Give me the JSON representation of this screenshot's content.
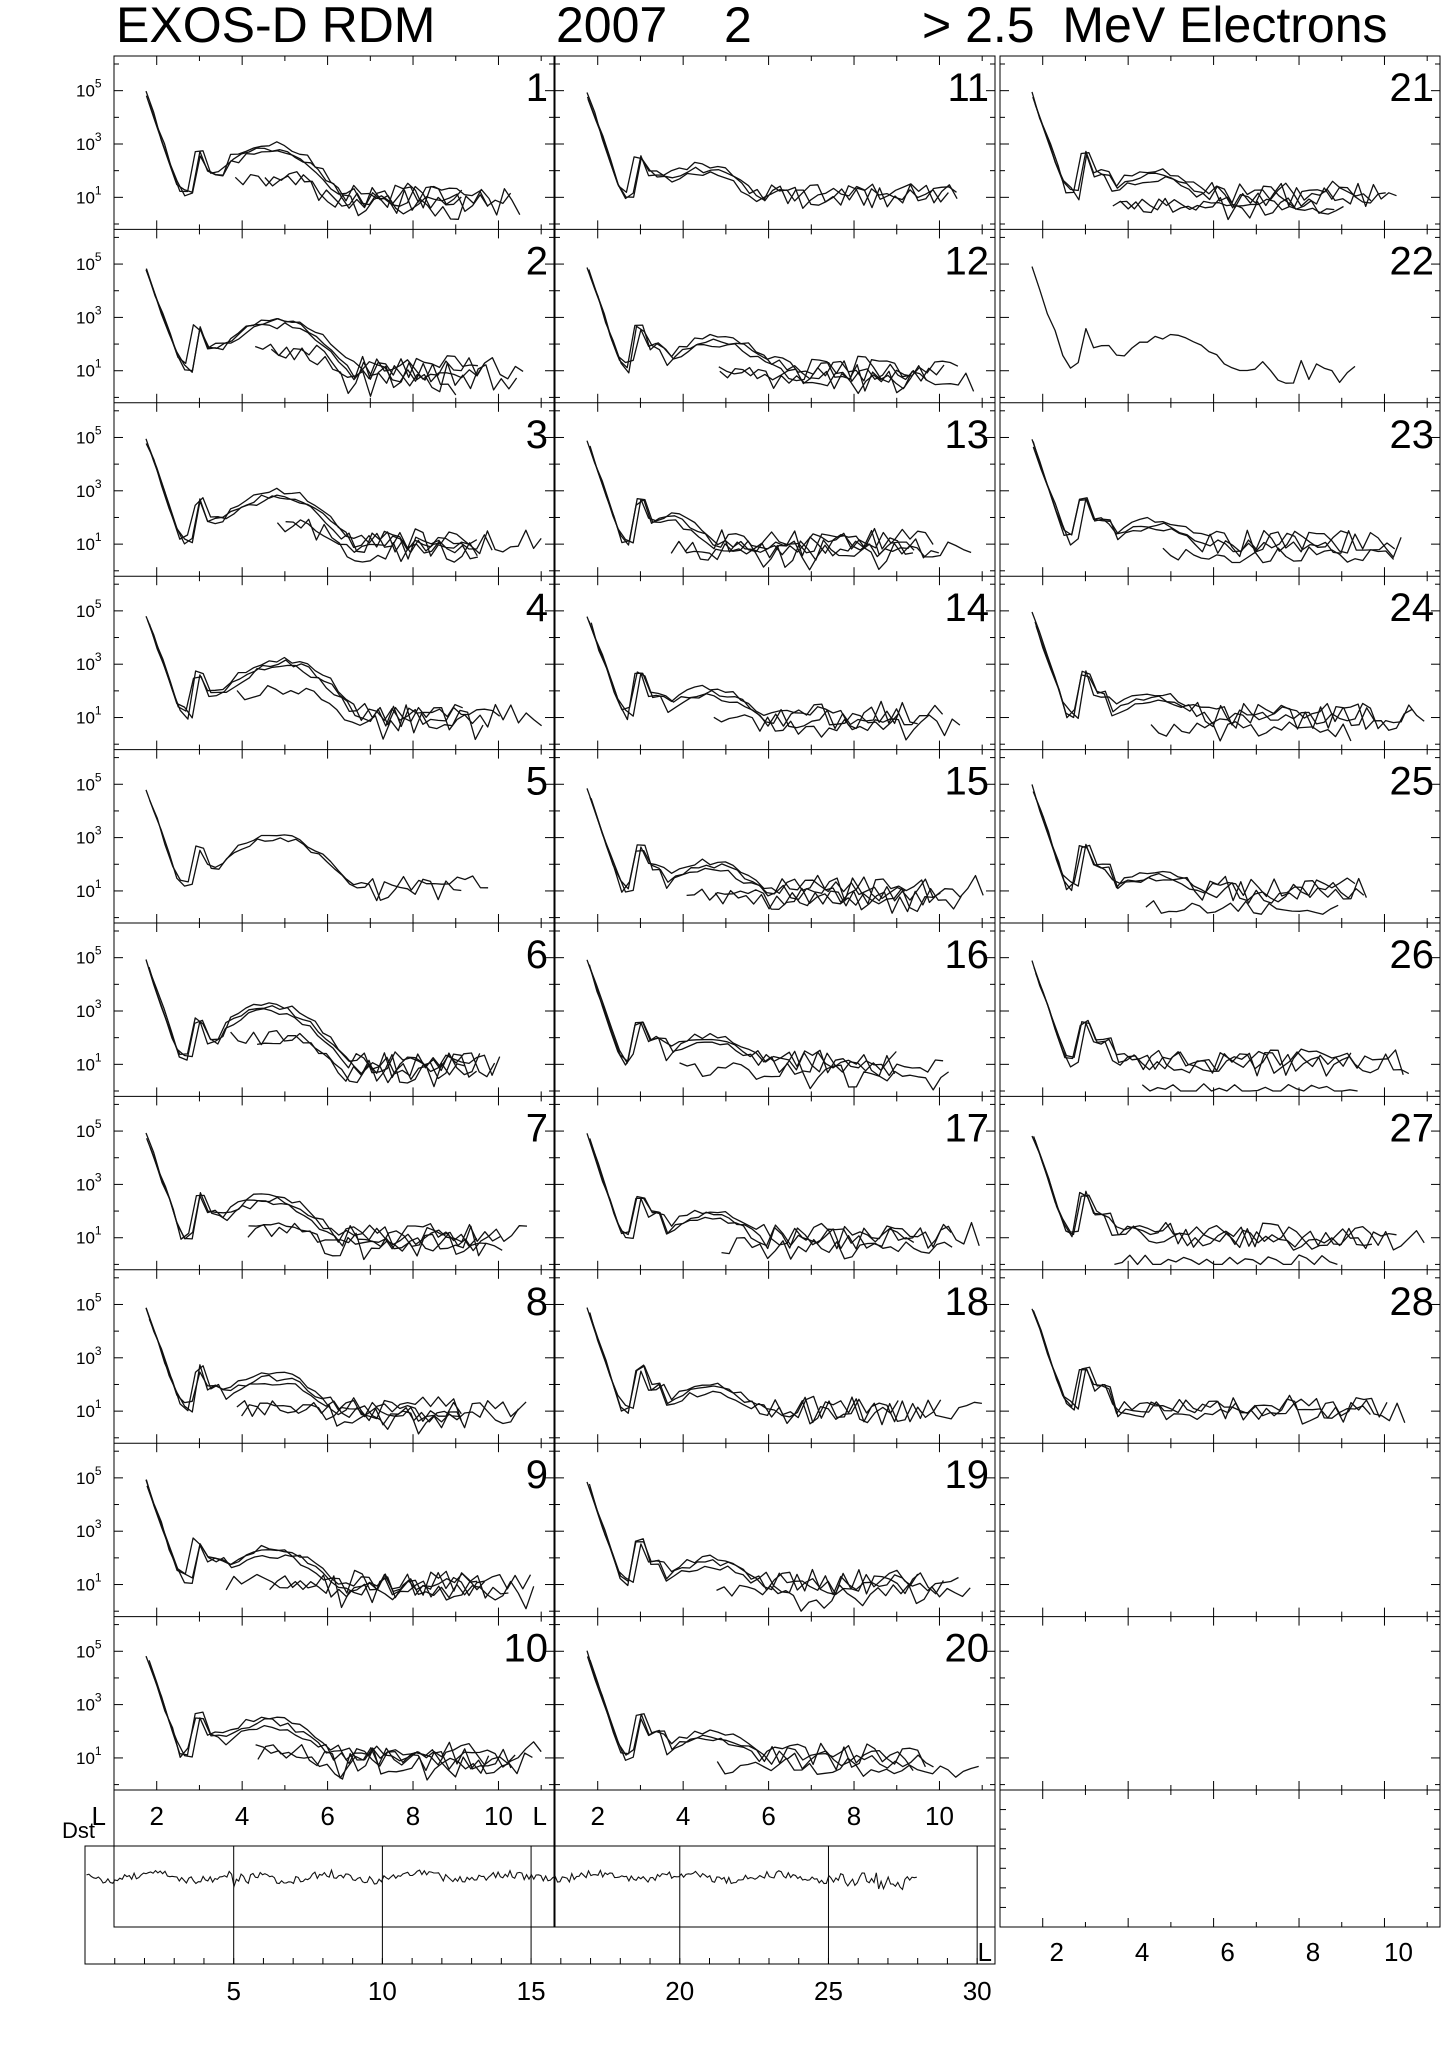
{
  "header": {
    "instrument": "EXOS-D RDM",
    "year": "2007",
    "month": "2",
    "particle": "> 2.5  MeV Electrons"
  },
  "chart_data": {
    "type": "line",
    "title": "EXOS-D RDM 2007 2 > 2.5 MeV Electrons",
    "panel_x_axis": {
      "label": "L",
      "ticks": [
        2,
        4,
        6,
        8,
        10
      ],
      "tick_labels": [
        "2",
        "4",
        "6",
        "8",
        "10"
      ],
      "range": [
        1.0,
        11.3
      ]
    },
    "panel_y_axis": {
      "scale": "log",
      "ticks": [
        1,
        3,
        5
      ],
      "tick_labels": [
        "10",
        "10",
        "10"
      ],
      "tick_superscripts": [
        "1",
        "3",
        "5"
      ],
      "range_log10": [
        0,
        6
      ]
    },
    "days": [
      1,
      2,
      3,
      4,
      5,
      6,
      7,
      8,
      9,
      10,
      11,
      12,
      13,
      14,
      15,
      16,
      17,
      18,
      19,
      20,
      21,
      22,
      23,
      24,
      25,
      26,
      27,
      28
    ],
    "day_labels": [
      "1",
      "2",
      "3",
      "4",
      "5",
      "6",
      "7",
      "8",
      "9",
      "10",
      "11",
      "12",
      "13",
      "14",
      "15",
      "16",
      "17",
      "18",
      "19",
      "20",
      "21",
      "22",
      "23",
      "24",
      "25",
      "26",
      "27",
      "28"
    ],
    "panels": [
      {
        "day": 1,
        "peak_L": 4.6,
        "peak_log": 3.0,
        "pass_count": 5
      },
      {
        "day": 2,
        "peak_L": 4.8,
        "peak_log": 3.0,
        "pass_count": 5
      },
      {
        "day": 3,
        "peak_L": 4.8,
        "peak_log": 3.0,
        "pass_count": 5
      },
      {
        "day": 4,
        "peak_L": 4.9,
        "peak_log": 3.2,
        "pass_count": 4
      },
      {
        "day": 5,
        "peak_L": 4.8,
        "peak_log": 3.1,
        "pass_count": 2
      },
      {
        "day": 6,
        "peak_L": 4.6,
        "peak_log": 3.3,
        "pass_count": 5
      },
      {
        "day": 7,
        "peak_L": 4.6,
        "peak_log": 2.6,
        "pass_count": 5
      },
      {
        "day": 8,
        "peak_L": 4.7,
        "peak_log": 2.4,
        "pass_count": 5
      },
      {
        "day": 9,
        "peak_L": 4.7,
        "peak_log": 2.4,
        "pass_count": 5
      },
      {
        "day": 10,
        "peak_L": 4.6,
        "peak_log": 2.5,
        "pass_count": 5
      },
      {
        "day": 11,
        "peak_L": 4.4,
        "peak_log": 2.2,
        "pass_count": 3
      },
      {
        "day": 12,
        "peak_L": 4.8,
        "peak_log": 2.3,
        "pass_count": 5
      },
      {
        "day": 13,
        "peak_L": 3.4,
        "peak_log": 2.2,
        "pass_count": 5
      },
      {
        "day": 14,
        "peak_L": 4.6,
        "peak_log": 2.1,
        "pass_count": 4
      },
      {
        "day": 15,
        "peak_L": 4.6,
        "peak_log": 2.1,
        "pass_count": 5
      },
      {
        "day": 16,
        "peak_L": 4.6,
        "peak_log": 2.1,
        "pass_count": 4
      },
      {
        "day": 17,
        "peak_L": 4.6,
        "peak_log": 2.0,
        "pass_count": 4
      },
      {
        "day": 18,
        "peak_L": 4.6,
        "peak_log": 2.0,
        "pass_count": 3
      },
      {
        "day": 19,
        "peak_L": 4.6,
        "peak_log": 2.0,
        "pass_count": 4
      },
      {
        "day": 20,
        "peak_L": 4.6,
        "peak_log": 2.0,
        "pass_count": 4
      },
      {
        "day": 21,
        "peak_L": 4.6,
        "peak_log": 2.0,
        "pass_count": 5
      },
      {
        "day": 22,
        "peak_L": 5.0,
        "peak_log": 2.3,
        "pass_count": 1
      },
      {
        "day": 23,
        "peak_L": 4.6,
        "peak_log": 1.9,
        "pass_count": 4
      },
      {
        "day": 24,
        "peak_L": 4.6,
        "peak_log": 1.9,
        "pass_count": 4
      },
      {
        "day": 25,
        "peak_L": 4.6,
        "peak_log": 1.7,
        "pass_count": 4
      },
      {
        "day": 26,
        "peak_L": 3.8,
        "peak_log": 1.3,
        "pass_count": 4
      },
      {
        "day": 27,
        "peak_L": 4.0,
        "peak_log": 1.4,
        "pass_count": 4
      },
      {
        "day": 28,
        "peak_L": 4.4,
        "peak_log": 1.2,
        "pass_count": 3
      }
    ],
    "dst": {
      "label": "Dst",
      "x_ticks": [
        5,
        10,
        15,
        20,
        25,
        30
      ],
      "x_tick_labels": [
        "5",
        "10",
        "15",
        "20",
        "25",
        "30"
      ],
      "x_range": [
        0,
        30.6
      ],
      "day_markers": [
        5,
        10,
        15,
        20,
        25,
        30
      ],
      "data_end_day": 28
    }
  }
}
